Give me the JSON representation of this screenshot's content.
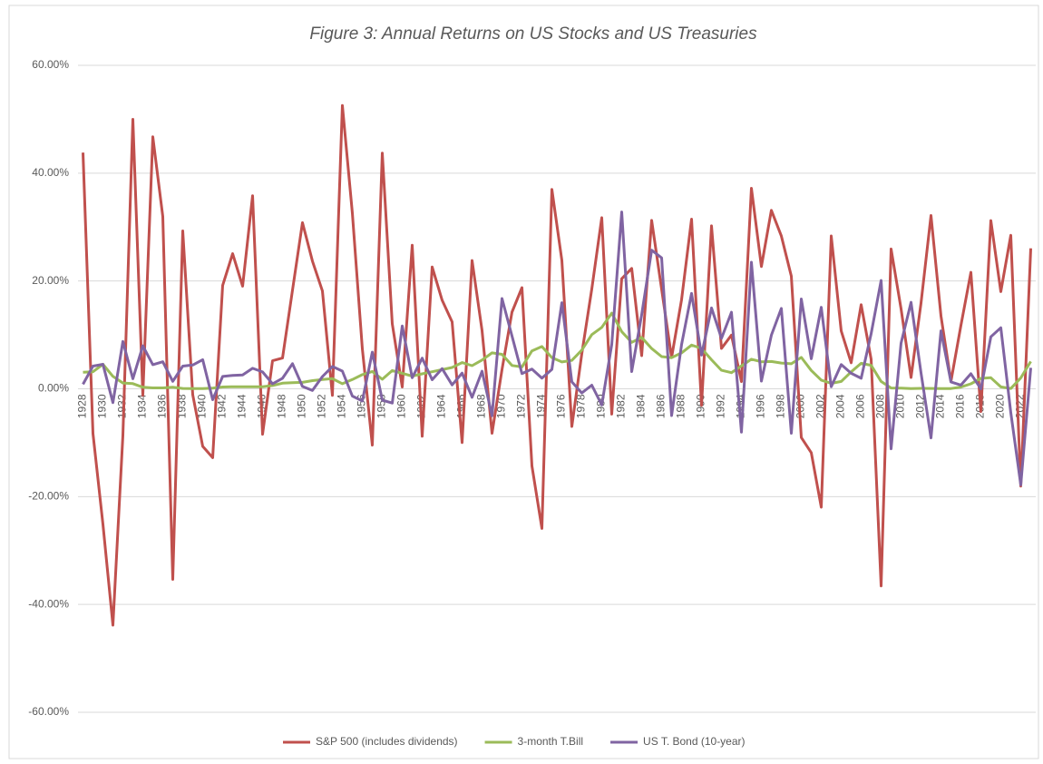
{
  "chart_data": {
    "type": "line",
    "title": "Figure 3: Annual Returns on US Stocks and US Treasuries",
    "categories": [
      "1928",
      null,
      "1930",
      null,
      "1932",
      null,
      "1934",
      null,
      "1936",
      null,
      "1938",
      null,
      "1940",
      null,
      "1942",
      null,
      "1944",
      null,
      "1946",
      null,
      "1948",
      null,
      "1950",
      null,
      "1952",
      null,
      "1954",
      null,
      "1956",
      null,
      "1958",
      null,
      "1960",
      null,
      "1962",
      null,
      "1964",
      null,
      "1966",
      null,
      "1968",
      null,
      "1970",
      null,
      "1972",
      null,
      "1974",
      null,
      "1976",
      null,
      "1978",
      null,
      "1980",
      null,
      "1982",
      null,
      "1984",
      null,
      "1986",
      null,
      "1988",
      null,
      "1990",
      null,
      "1992",
      null,
      "1994",
      null,
      "1996",
      null,
      "1998",
      null,
      "2000",
      null,
      "2002",
      null,
      "2004",
      null,
      "2006",
      null,
      "2008",
      null,
      "2010",
      null,
      "2012",
      null,
      "2014",
      null,
      "2016",
      null,
      "2018",
      null,
      "2020",
      null,
      "2022",
      null
    ],
    "series": [
      {
        "name": "S&P 500 (includes dividends)",
        "color": "#c0504d",
        "values": [
          43.81,
          -8.3,
          -25.12,
          -43.84,
          -8.64,
          49.98,
          -1.19,
          46.74,
          31.94,
          -35.34,
          29.28,
          -1.1,
          -10.67,
          -12.77,
          19.17,
          25.06,
          19.03,
          35.82,
          -8.43,
          5.2,
          5.7,
          18.3,
          30.81,
          23.68,
          18.15,
          -1.21,
          52.56,
          32.6,
          7.44,
          -10.46,
          43.72,
          12.06,
          0.34,
          26.64,
          -8.81,
          22.61,
          16.42,
          12.4,
          -9.97,
          23.8,
          10.81,
          -8.24,
          3.56,
          14.22,
          18.76,
          -14.31,
          -25.9,
          37.0,
          23.83,
          -6.98,
          6.51,
          18.52,
          31.74,
          -4.7,
          20.42,
          22.34,
          6.15,
          31.24,
          18.49,
          5.81,
          16.54,
          31.48,
          -3.06,
          30.23,
          7.49,
          9.97,
          1.33,
          37.2,
          22.68,
          33.1,
          28.34,
          20.89,
          -9.03,
          -11.85,
          -21.97,
          28.36,
          10.74,
          4.83,
          15.61,
          5.48,
          -36.55,
          25.94,
          14.82,
          2.1,
          15.89,
          32.15,
          13.52,
          1.38,
          11.77,
          21.61,
          -4.23,
          31.21,
          18.02,
          28.47,
          -18.04,
          26.06
        ]
      },
      {
        "name": "3-month T.Bill",
        "color": "#9bbb59",
        "values": [
          3.08,
          3.16,
          4.55,
          2.31,
          1.07,
          0.96,
          0.28,
          0.17,
          0.17,
          0.28,
          0.07,
          0.05,
          0.04,
          0.13,
          0.34,
          0.38,
          0.38,
          0.38,
          0.38,
          0.6,
          1.05,
          1.12,
          1.2,
          1.52,
          1.72,
          1.89,
          0.94,
          1.72,
          2.62,
          3.22,
          1.77,
          3.39,
          2.87,
          2.35,
          2.77,
          3.16,
          3.55,
          3.95,
          4.86,
          4.29,
          5.34,
          6.67,
          6.39,
          4.33,
          4.06,
          7.04,
          7.85,
          5.79,
          4.98,
          5.26,
          7.18,
          10.05,
          11.39,
          14.04,
          10.6,
          8.61,
          9.52,
          7.48,
          5.98,
          5.78,
          6.67,
          8.11,
          7.49,
          5.38,
          3.43,
          3.0,
          4.25,
          5.49,
          5.01,
          5.06,
          4.78,
          4.64,
          5.82,
          3.4,
          1.61,
          1.01,
          1.37,
          3.15,
          4.73,
          4.36,
          1.37,
          0.15,
          0.14,
          0.05,
          0.09,
          0.06,
          0.03,
          0.05,
          0.32,
          0.93,
          1.94,
          2.06,
          0.35,
          0.05,
          2.02,
          5.07
        ]
      },
      {
        "name": "US T. Bond (10-year)",
        "color": "#8064a2",
        "values": [
          0.84,
          4.2,
          4.54,
          -2.56,
          8.79,
          1.86,
          7.96,
          4.47,
          5.02,
          1.38,
          4.21,
          4.41,
          5.4,
          -2.02,
          2.29,
          2.49,
          2.58,
          3.8,
          3.13,
          0.92,
          1.95,
          4.66,
          0.43,
          -0.3,
          2.27,
          4.14,
          3.29,
          -1.34,
          -2.26,
          6.8,
          -2.1,
          -2.65,
          11.64,
          2.06,
          5.69,
          1.68,
          3.73,
          0.72,
          2.91,
          -1.58,
          3.27,
          -5.01,
          16.75,
          9.79,
          2.82,
          3.66,
          1.99,
          3.61,
          15.98,
          1.29,
          -0.78,
          0.67,
          -2.99,
          8.2,
          32.81,
          3.2,
          13.73,
          25.71,
          24.28,
          -4.96,
          8.22,
          17.69,
          6.24,
          15.0,
          9.36,
          14.21,
          -8.04,
          23.48,
          1.43,
          9.94,
          14.92,
          -8.25,
          16.66,
          5.57,
          15.12,
          0.38,
          4.49,
          2.87,
          1.96,
          10.21,
          20.1,
          -11.12,
          8.46,
          16.04,
          2.97,
          -9.1,
          10.75,
          1.28,
          0.69,
          2.8,
          -0.02,
          9.64,
          11.33,
          -4.42,
          -17.83,
          3.88
        ]
      }
    ],
    "ylim": [
      -60,
      60
    ],
    "yticks": [
      {
        "value": -60,
        "label": "-60.00%"
      },
      {
        "value": -40,
        "label": "-40.00%"
      },
      {
        "value": -20,
        "label": "-20.00%"
      },
      {
        "value": 0,
        "label": "0.00%"
      },
      {
        "value": 20,
        "label": "20.00%"
      },
      {
        "value": 40,
        "label": "40.00%"
      },
      {
        "value": 60,
        "label": "60.00%"
      }
    ],
    "grid": true,
    "legend": "bottom"
  }
}
